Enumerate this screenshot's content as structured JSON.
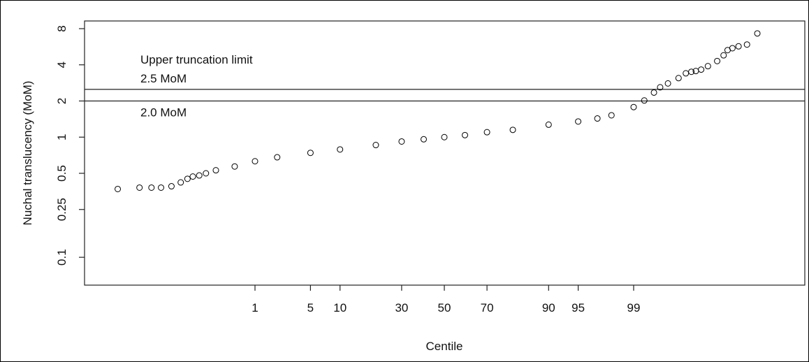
{
  "chart_data": {
    "type": "scatter",
    "title": "",
    "xlabel": "Centile",
    "ylabel": "Nuchal translucency (MoM)",
    "x_scale": "normal-quantile",
    "y_scale": "log",
    "x_ticks": [
      1,
      5,
      10,
      30,
      50,
      70,
      90,
      95,
      99
    ],
    "y_ticks": [
      {
        "value": 8,
        "label": "8"
      },
      {
        "value": 4,
        "label": "4"
      },
      {
        "value": 2,
        "label": "2"
      },
      {
        "value": 1,
        "label": "1"
      },
      {
        "value": 0.5,
        "label": "0.5"
      },
      {
        "value": 0.25,
        "label": "0.25"
      },
      {
        "value": 0.1,
        "label": "0.1"
      }
    ],
    "ylim": [
      0.07,
      9.5
    ],
    "reference_lines": [
      {
        "name": "upper-truncation-2.5",
        "y": 2.5,
        "labels": [
          "Upper truncation limit",
          "2.5 MoM"
        ]
      },
      {
        "name": "lower-line-2.0",
        "y": 2.0,
        "labels": [
          "2.0 MoM"
        ]
      }
    ],
    "series": [
      {
        "marker": "open-circle",
        "color": "#000000",
        "x": [
          0.003,
          0.009,
          0.016,
          0.025,
          0.04,
          0.06,
          0.08,
          0.1,
          0.13,
          0.17,
          0.25,
          0.5,
          1,
          2,
          5,
          10,
          20,
          30,
          40,
          50,
          60,
          70,
          80,
          90,
          95,
          97,
          98,
          99,
          99.3,
          99.5,
          99.6,
          99.7,
          99.8,
          99.85,
          99.88,
          99.9,
          99.92,
          99.94,
          99.96,
          99.97,
          99.975,
          99.98,
          99.985,
          99.99,
          99.994
        ],
        "y": [
          0.37,
          0.38,
          0.38,
          0.38,
          0.39,
          0.42,
          0.45,
          0.47,
          0.48,
          0.5,
          0.53,
          0.57,
          0.63,
          0.68,
          0.74,
          0.79,
          0.86,
          0.92,
          0.96,
          1.0,
          1.04,
          1.1,
          1.15,
          1.27,
          1.35,
          1.43,
          1.52,
          1.78,
          2.02,
          2.35,
          2.6,
          2.8,
          3.1,
          3.4,
          3.5,
          3.55,
          3.65,
          3.9,
          4.3,
          4.8,
          5.3,
          5.5,
          5.7,
          5.9,
          7.3
        ]
      }
    ]
  }
}
